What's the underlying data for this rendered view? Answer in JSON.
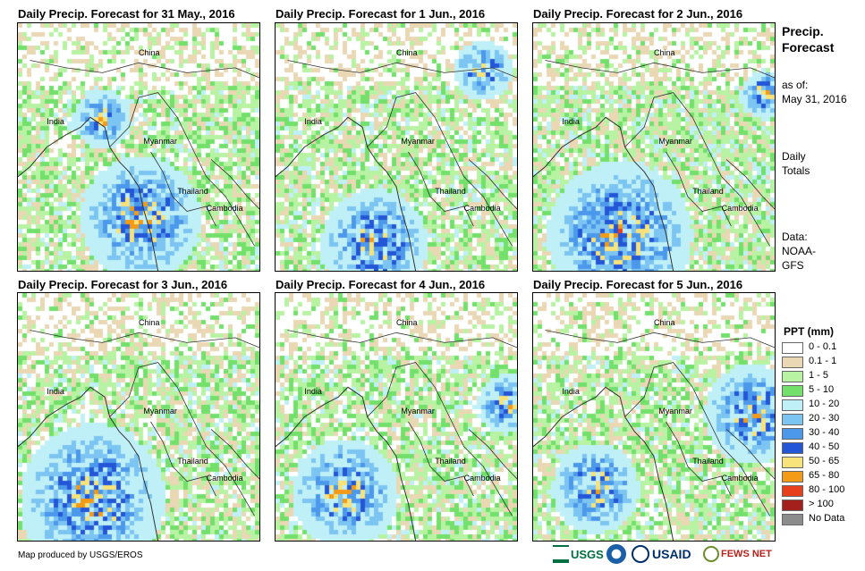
{
  "panels": [
    {
      "title": "Daily Precip. Forecast for 31 May., 2016",
      "seed": 11,
      "heavy": [
        [
          0.5,
          0.78,
          0.25
        ],
        [
          0.34,
          0.38,
          0.12
        ]
      ]
    },
    {
      "title": "Daily Precip. Forecast for 1 Jun., 2016",
      "seed": 23,
      "heavy": [
        [
          0.4,
          0.88,
          0.22
        ],
        [
          0.85,
          0.18,
          0.12
        ]
      ]
    },
    {
      "title": "Daily Precip. Forecast for 2 Jun., 2016",
      "seed": 37,
      "heavy": [
        [
          0.35,
          0.85,
          0.3
        ],
        [
          0.95,
          0.28,
          0.1
        ]
      ]
    },
    {
      "title": "Daily Precip. Forecast for 3 Jun., 2016",
      "seed": 41,
      "heavy": [
        [
          0.3,
          0.82,
          0.3
        ]
      ]
    },
    {
      "title": "Daily Precip. Forecast for 4 Jun., 2016",
      "seed": 53,
      "heavy": [
        [
          0.28,
          0.8,
          0.22
        ],
        [
          0.95,
          0.44,
          0.12
        ]
      ]
    },
    {
      "title": "Daily Precip. Forecast for 5 Jun., 2016",
      "seed": 67,
      "heavy": [
        [
          0.9,
          0.48,
          0.2
        ],
        [
          0.25,
          0.78,
          0.18
        ]
      ]
    }
  ],
  "map_labels": {
    "china": "China",
    "india": "India",
    "myanmar": "Myanmar",
    "thailand": "Thailand",
    "cambodia": "Cambodia"
  },
  "side": {
    "title_line1": "Precip.",
    "title_line2": "Forecast",
    "asof_line1": "as of:",
    "asof_line2": "May 31, 2016",
    "totals_line1": "Daily",
    "totals_line2": "Totals",
    "data_line1": "Data:",
    "data_line2": "NOAA-",
    "data_line3": "GFS"
  },
  "legend": {
    "title": "PPT (mm)",
    "items": [
      {
        "label": "0 - 0.1",
        "color": "#ffffff"
      },
      {
        "label": "0.1 - 1",
        "color": "#ead8b5"
      },
      {
        "label": "1 - 5",
        "color": "#b7f3a3"
      },
      {
        "label": "5 - 10",
        "color": "#72e06b"
      },
      {
        "label": "10 - 20",
        "color": "#bff0f8"
      },
      {
        "label": "20 - 30",
        "color": "#7cc4f2"
      },
      {
        "label": "30 - 40",
        "color": "#4c98eb"
      },
      {
        "label": "40 - 50",
        "color": "#2456d8"
      },
      {
        "label": "50 - 65",
        "color": "#f8e27a"
      },
      {
        "label": "65 - 80",
        "color": "#f39a16"
      },
      {
        "label": "80 - 100",
        "color": "#e8401c"
      },
      {
        "label": "> 100",
        "color": "#a3201c"
      },
      {
        "label": "No Data",
        "color": "#8c8c8c"
      }
    ]
  },
  "credit": "Map produced by USGS/EROS",
  "logos": {
    "usgs": "USGS",
    "noaa": "NOAA",
    "usaid": "USAID",
    "fewsnet": "FEWS NET"
  }
}
